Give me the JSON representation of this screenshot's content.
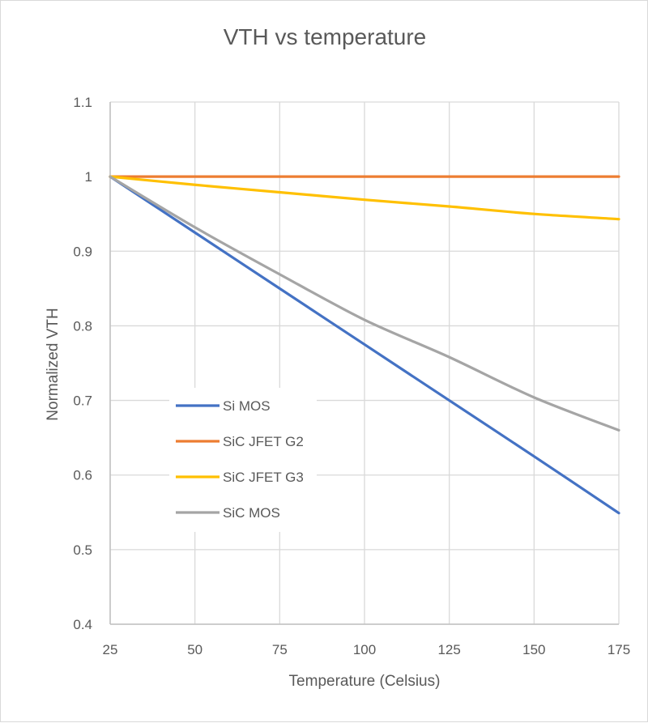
{
  "chart_data": {
    "type": "line",
    "title": "VTH vs temperature",
    "xlabel": "Temperature (Celsius)",
    "ylabel": "Normalized VTH",
    "x": [
      25,
      50,
      75,
      100,
      125,
      150,
      175
    ],
    "xlim": [
      25,
      175
    ],
    "ylim": [
      0.4,
      1.1
    ],
    "x_ticks": [
      "25",
      "50",
      "75",
      "100",
      "125",
      "150",
      "175"
    ],
    "y_ticks": [
      "0.4",
      "0.5",
      "0.6",
      "0.7",
      "0.8",
      "0.9",
      "1",
      "1.1"
    ],
    "grid": true,
    "legend_position": "left, inside plot",
    "series": [
      {
        "name": "Si MOS",
        "color": "#4472C4",
        "values": [
          1.0,
          0.925,
          0.85,
          0.775,
          0.7,
          0.625,
          0.549
        ]
      },
      {
        "name": "SiC JFET G2",
        "color": "#ED7D31",
        "values": [
          1.0,
          1.0,
          1.0,
          1.0,
          1.0,
          1.0,
          1.0
        ]
      },
      {
        "name": "SiC JFET G3",
        "color": "#FFC000",
        "values": [
          1.0,
          0.989,
          0.979,
          0.969,
          0.96,
          0.95,
          0.943
        ]
      },
      {
        "name": "SiC MOS",
        "color": "#A5A5A5",
        "values": [
          1.0,
          0.932,
          0.869,
          0.808,
          0.758,
          0.704,
          0.66
        ]
      }
    ]
  }
}
